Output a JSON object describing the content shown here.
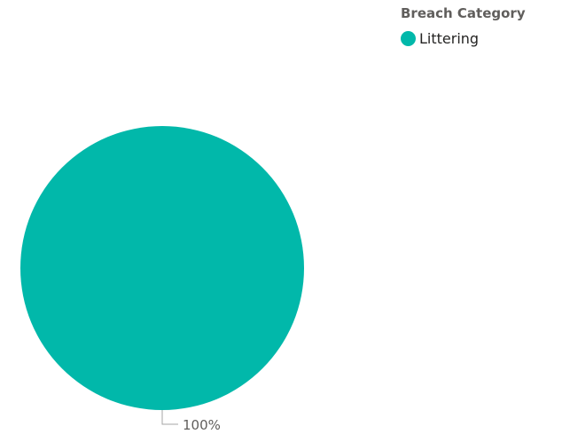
{
  "chart_data": {
    "type": "pie",
    "legend_title": "Breach Category",
    "legend_position": "top-right",
    "slices": [
      {
        "label": "Littering",
        "value": 100,
        "percent_label": "100%",
        "color": "#01b8aa"
      }
    ]
  },
  "colors": {
    "leader_line": "#a6a6a6",
    "text_muted": "#605e5c"
  }
}
